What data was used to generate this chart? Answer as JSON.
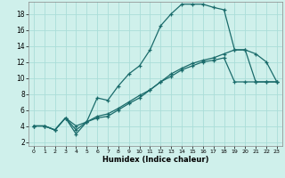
{
  "xlabel": "Humidex (Indice chaleur)",
  "bg_color": "#cff0eb",
  "line_color": "#1a6b6b",
  "grid_color": "#aaddd8",
  "xlim": [
    -0.5,
    23.5
  ],
  "ylim": [
    1.5,
    19.5
  ],
  "xticks": [
    0,
    1,
    2,
    3,
    4,
    5,
    6,
    7,
    8,
    9,
    10,
    11,
    12,
    13,
    14,
    15,
    16,
    17,
    18,
    19,
    20,
    21,
    22,
    23
  ],
  "yticks": [
    2,
    4,
    6,
    8,
    10,
    12,
    14,
    16,
    18
  ],
  "line1_x": [
    0,
    1,
    2,
    3,
    4,
    5,
    6,
    7,
    8,
    9,
    10,
    11,
    12,
    13,
    14,
    15,
    16,
    17,
    18,
    19,
    20,
    21,
    22,
    23
  ],
  "line1_y": [
    4.0,
    4.0,
    3.5,
    5.0,
    4.0,
    4.5,
    7.5,
    7.2,
    9.0,
    10.5,
    11.5,
    13.5,
    16.5,
    18.0,
    19.2,
    19.2,
    19.2,
    18.8,
    18.5,
    13.5,
    13.5,
    13.0,
    12.0,
    9.5
  ],
  "line2_x": [
    0,
    1,
    2,
    3,
    4,
    5,
    6,
    7,
    8,
    9,
    10,
    11,
    12,
    13,
    14,
    15,
    16,
    17,
    18,
    19,
    20,
    21,
    22,
    23
  ],
  "line2_y": [
    4.0,
    4.0,
    3.5,
    5.0,
    3.0,
    4.5,
    5.0,
    5.2,
    6.0,
    6.8,
    7.5,
    8.5,
    9.5,
    10.5,
    11.2,
    11.8,
    12.2,
    12.5,
    13.0,
    13.5,
    13.5,
    9.5,
    9.5,
    9.5
  ],
  "line3_x": [
    0,
    1,
    2,
    3,
    4,
    5,
    6,
    7,
    8,
    9,
    10,
    11,
    12,
    13,
    14,
    15,
    16,
    17,
    18,
    19,
    20,
    21,
    22,
    23
  ],
  "line3_y": [
    4.0,
    4.0,
    3.5,
    5.0,
    3.5,
    4.5,
    5.2,
    5.5,
    6.2,
    7.0,
    7.8,
    8.5,
    9.5,
    10.2,
    11.0,
    11.5,
    12.0,
    12.2,
    12.5,
    9.5,
    9.5,
    9.5,
    9.5,
    9.5
  ]
}
